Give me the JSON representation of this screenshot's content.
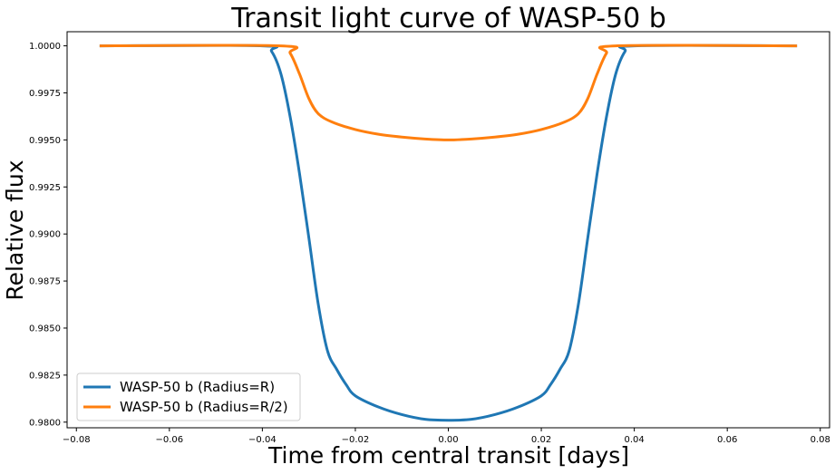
{
  "chart_data": {
    "type": "line",
    "title": "Transit light curve of WASP-50 b",
    "xlabel": "Time from central transit [days]",
    "ylabel": "Relative flux",
    "xlim": [
      -0.082,
      0.082
    ],
    "ylim": [
      0.9797,
      1.00075
    ],
    "xticks": [
      -0.08,
      -0.06,
      -0.04,
      -0.02,
      0.0,
      0.02,
      0.04,
      0.06,
      0.08
    ],
    "xtick_labels": [
      "−0.08",
      "−0.06",
      "−0.04",
      "−0.02",
      "0.00",
      "0.02",
      "0.04",
      "0.06",
      "0.08"
    ],
    "yticks": [
      0.98,
      0.9825,
      0.985,
      0.9875,
      0.99,
      0.9925,
      0.995,
      0.9975,
      1.0
    ],
    "ytick_labels": [
      "0.9800",
      "0.9825",
      "0.9850",
      "0.9875",
      "0.9900",
      "0.9925",
      "0.9950",
      "0.9975",
      "1.0000"
    ],
    "legend_position": "bottom-left",
    "grid": false,
    "series": [
      {
        "name": "WASP-50 b (Radius=R)",
        "color": "#1f77b4",
        "x": [
          -0.075,
          -0.04,
          -0.038,
          -0.036,
          -0.034,
          -0.032,
          -0.03,
          -0.028,
          -0.026,
          -0.024,
          -0.022,
          -0.02,
          -0.015,
          -0.01,
          -0.005,
          0.0,
          0.005,
          0.01,
          0.015,
          0.02,
          0.022,
          0.024,
          0.026,
          0.028,
          0.03,
          0.032,
          0.034,
          0.036,
          0.038,
          0.04,
          0.075
        ],
        "y": [
          1.0,
          1.0,
          0.9997,
          0.9985,
          0.9962,
          0.9932,
          0.9898,
          0.9863,
          0.9838,
          0.9828,
          0.982,
          0.9814,
          0.9808,
          0.9804,
          0.98015,
          0.9801,
          0.98015,
          0.9804,
          0.9808,
          0.9814,
          0.982,
          0.9828,
          0.9838,
          0.9863,
          0.9898,
          0.9932,
          0.9962,
          0.9985,
          0.9997,
          1.0,
          1.0
        ]
      },
      {
        "name": "WASP-50 b (Radius=R/2)",
        "color": "#ff7f0e",
        "x": [
          -0.075,
          -0.036,
          -0.034,
          -0.032,
          -0.03,
          -0.028,
          -0.025,
          -0.02,
          -0.015,
          -0.01,
          -0.005,
          0.0,
          0.005,
          0.01,
          0.015,
          0.02,
          0.025,
          0.028,
          0.03,
          0.032,
          0.034,
          0.036,
          0.075
        ],
        "y": [
          1.0,
          1.0,
          0.9996,
          0.9985,
          0.9972,
          0.9964,
          0.99595,
          0.99555,
          0.9953,
          0.99515,
          0.99505,
          0.995,
          0.99505,
          0.99515,
          0.9953,
          0.99555,
          0.99595,
          0.9964,
          0.9972,
          0.9985,
          0.9996,
          1.0,
          1.0
        ]
      }
    ]
  }
}
